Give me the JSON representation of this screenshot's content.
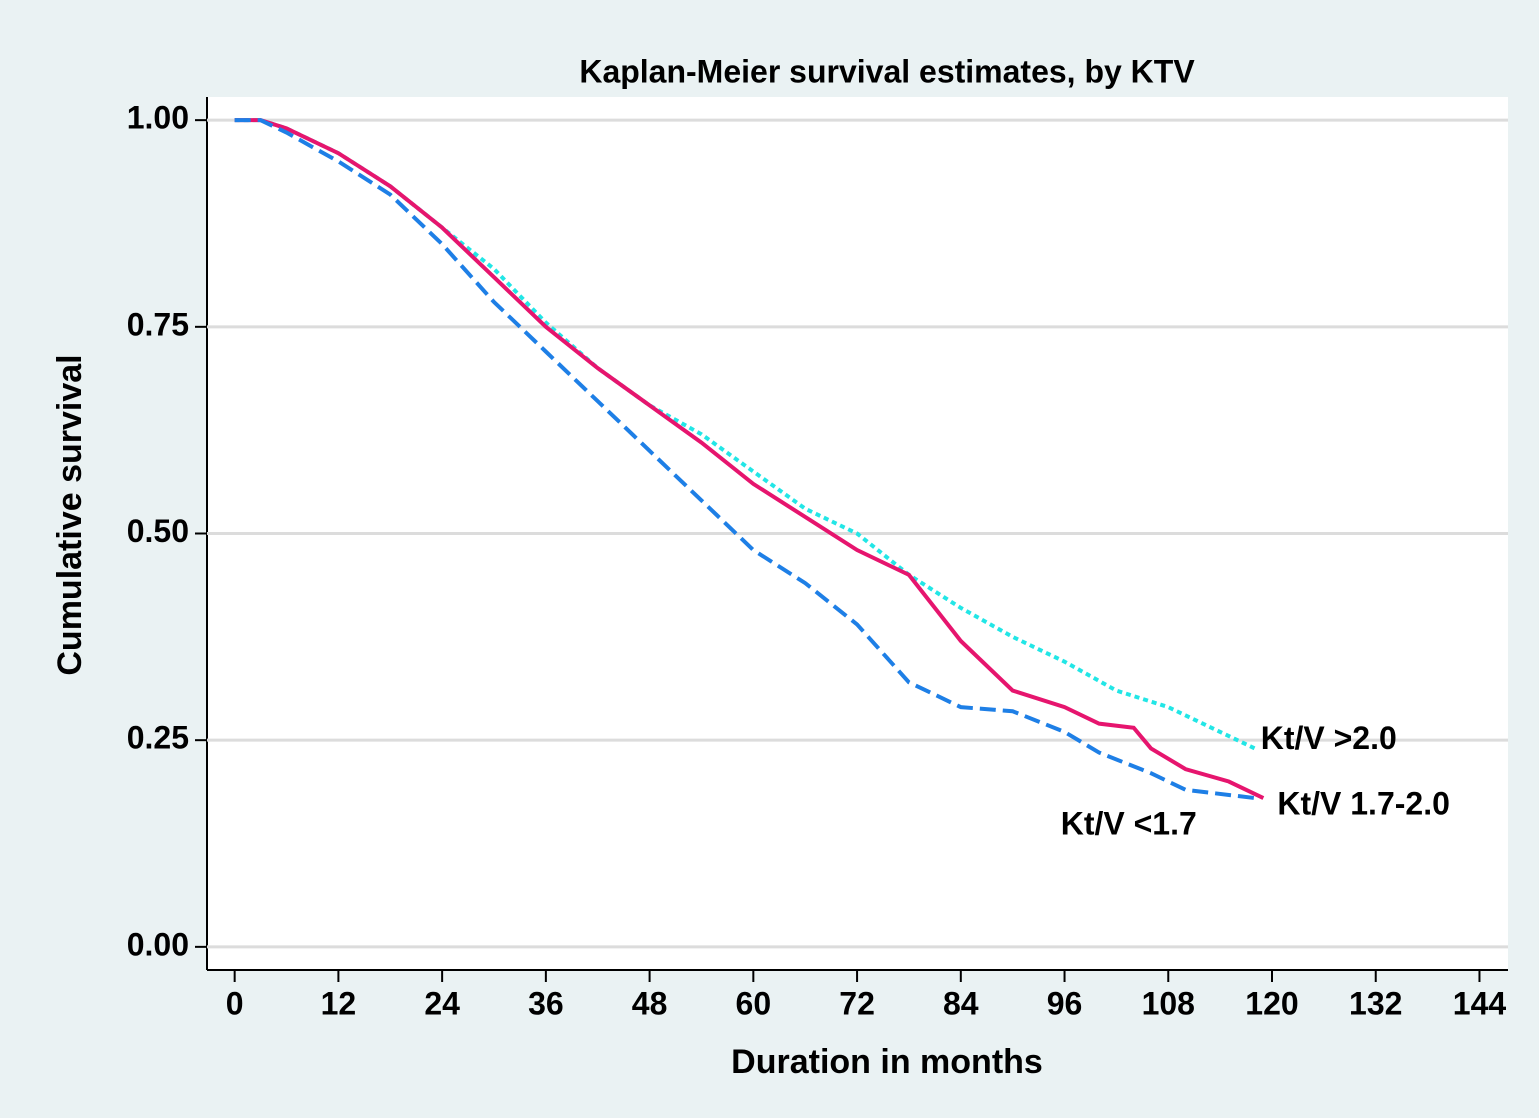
{
  "chart_data": {
    "type": "line",
    "title": "Kaplan-Meier survival estimates, by KTV",
    "x_label": "Duration in months",
    "y_label": "Cumulative survival",
    "xlim": [
      -3.2,
      147.3
    ],
    "ylim": [
      -0.028,
      1.028
    ],
    "xticks": [
      0,
      12,
      24,
      36,
      48,
      60,
      72,
      84,
      96,
      108,
      120,
      132,
      144
    ],
    "yticks": [
      {
        "value": 0,
        "label": "0.00"
      },
      {
        "value": 0.25,
        "label": "0.25"
      },
      {
        "value": 0.5,
        "label": "0.50"
      },
      {
        "value": 0.75,
        "label": "0.75"
      },
      {
        "value": 1,
        "label": "1.00"
      }
    ],
    "grid": true,
    "series": [
      {
        "name": "Kt/V >2.0",
        "color": "#22e6e6",
        "dash": "dotted",
        "x": [
          0,
          3,
          6,
          12,
          18,
          24,
          30,
          36,
          42,
          48,
          54,
          60,
          66,
          72,
          78,
          84,
          90,
          96,
          102,
          108,
          114,
          118
        ],
        "values": [
          1,
          1,
          0.99,
          0.96,
          0.92,
          0.87,
          0.82,
          0.755,
          0.7,
          0.655,
          0.62,
          0.575,
          0.53,
          0.5,
          0.45,
          0.41,
          0.375,
          0.345,
          0.31,
          0.29,
          0.26,
          0.24
        ]
      },
      {
        "name": "Kt/V 1.7-2.0",
        "color": "#e6156e",
        "dash": "solid",
        "x": [
          0,
          3,
          6,
          12,
          18,
          24,
          30,
          36,
          42,
          48,
          54,
          60,
          66,
          72,
          78,
          84,
          90,
          96,
          100,
          104,
          106,
          110,
          115,
          119
        ],
        "values": [
          1,
          1,
          0.99,
          0.96,
          0.92,
          0.87,
          0.81,
          0.75,
          0.7,
          0.655,
          0.61,
          0.56,
          0.52,
          0.48,
          0.45,
          0.37,
          0.31,
          0.29,
          0.27,
          0.265,
          0.24,
          0.215,
          0.2,
          0.18
        ]
      },
      {
        "name": "Kt/V <1.7",
        "color": "#1e7fe6",
        "dash": "dashed",
        "x": [
          0,
          3,
          6,
          12,
          18,
          24,
          30,
          36,
          42,
          48,
          54,
          60,
          66,
          72,
          78,
          84,
          90,
          96,
          100,
          106,
          110,
          118
        ],
        "values": [
          1,
          1,
          0.985,
          0.95,
          0.91,
          0.85,
          0.78,
          0.72,
          0.66,
          0.6,
          0.54,
          0.48,
          0.44,
          0.39,
          0.32,
          0.29,
          0.285,
          0.26,
          0.235,
          0.21,
          0.19,
          0.18
        ]
      }
    ]
  }
}
